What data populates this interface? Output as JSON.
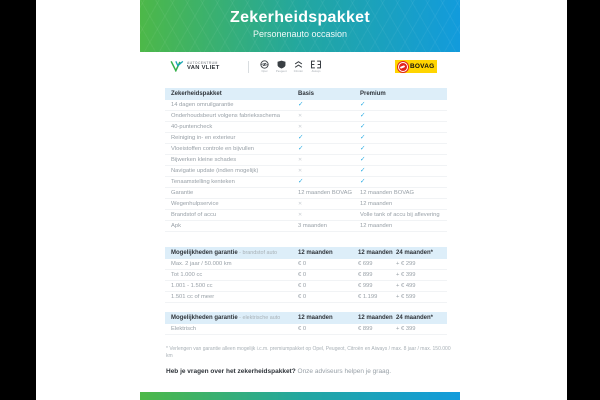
{
  "header": {
    "title": "Zekerheidspakket",
    "subtitle": "Personenauto occasion"
  },
  "logos": {
    "dealer_line1": "AUTOCENTRUM",
    "dealer_line2": "VAN VLIET",
    "brands": [
      "Opel",
      "Peugeot",
      "Citroën",
      "Aiways"
    ],
    "bovag_label": "BOVAG"
  },
  "package_table": {
    "headers": [
      "Zekerheidspakket",
      "Basis",
      "Premium"
    ],
    "rows": [
      {
        "label": "14 dagen omruilgarantie",
        "basis": "check",
        "premium": "check"
      },
      {
        "label": "Onderhoudsbeurt volgens fabrieksschema",
        "basis": "cross",
        "premium": "check"
      },
      {
        "label": "40-puntencheck",
        "basis": "cross",
        "premium": "check"
      },
      {
        "label": "Reiniging in- en exterieur",
        "basis": "check",
        "premium": "check"
      },
      {
        "label": "Vloeistoffen controle en bijvullen",
        "basis": "check",
        "premium": "check"
      },
      {
        "label": "Bijwerken kleine schades",
        "basis": "cross",
        "premium": "check"
      },
      {
        "label": "Navigatie update (indien mogelijk)",
        "basis": "cross",
        "premium": "check"
      },
      {
        "label": "Tenaamstelling kenteken",
        "basis": "check",
        "premium": "check"
      },
      {
        "label": "Garantie",
        "basis": "12 maanden BOVAG",
        "premium": "12 maanden BOVAG"
      },
      {
        "label": "Wegenhulpservice",
        "basis": "cross",
        "premium": "12 maanden"
      },
      {
        "label": "Brandstof of accu",
        "basis": "cross",
        "premium": "Volle tank of accu bij aflevering"
      },
      {
        "label": "Apk",
        "basis": "3 maanden",
        "premium": "12 maanden"
      }
    ]
  },
  "fuel_table": {
    "header_title": "Mogelijkheden garantie",
    "header_subtitle": " - brandstof auto",
    "col_headers": [
      "12 maanden",
      "12 maanden",
      "24 maanden*"
    ],
    "rows": [
      {
        "label": "Max. 2 jaar / 50.000 km",
        "values": [
          "€ 0",
          "€ 699",
          "+ € 299"
        ]
      },
      {
        "label": "Tot 1.000 cc",
        "values": [
          "€ 0",
          "€ 899",
          "+ € 399"
        ]
      },
      {
        "label": "1.001 - 1.500 cc",
        "values": [
          "€ 0",
          "€ 999",
          "+ € 499"
        ]
      },
      {
        "label": "1.501 cc of meer",
        "values": [
          "€ 0",
          "€ 1.199",
          "+ € 599"
        ]
      }
    ]
  },
  "electric_table": {
    "header_title": "Mogelijkheden garantie",
    "header_subtitle": " - elektrische auto",
    "col_headers": [
      "12 maanden",
      "12 maanden",
      "24 maanden*"
    ],
    "rows": [
      {
        "label": "Elektrisch",
        "values": [
          "€ 0",
          "€ 899",
          "+ € 399"
        ]
      }
    ]
  },
  "footnote": "* Verlengen van garantie alleen mogelijk i.c.m. premiumpakket op Opel, Peugeot, Citroën en Aiways / max. 8 jaar / max. 150.000 km",
  "question": {
    "bold": "Heb je vragen over het zekerheidspakket?",
    "rest": " Onze adviseurs helpen je graag."
  },
  "colors": {
    "background": "#000000",
    "page": "#ffffff",
    "gradient_green": "#4db848",
    "gradient_blue": "#129bdc",
    "table_header_bg": "#ddeef9",
    "check": "#29abe2",
    "cross": "#c9ced3",
    "text_dark": "#2f343a",
    "text_gray": "#98a0a7",
    "bovag_yellow": "#ffd500",
    "bovag_red": "#e2231a"
  }
}
